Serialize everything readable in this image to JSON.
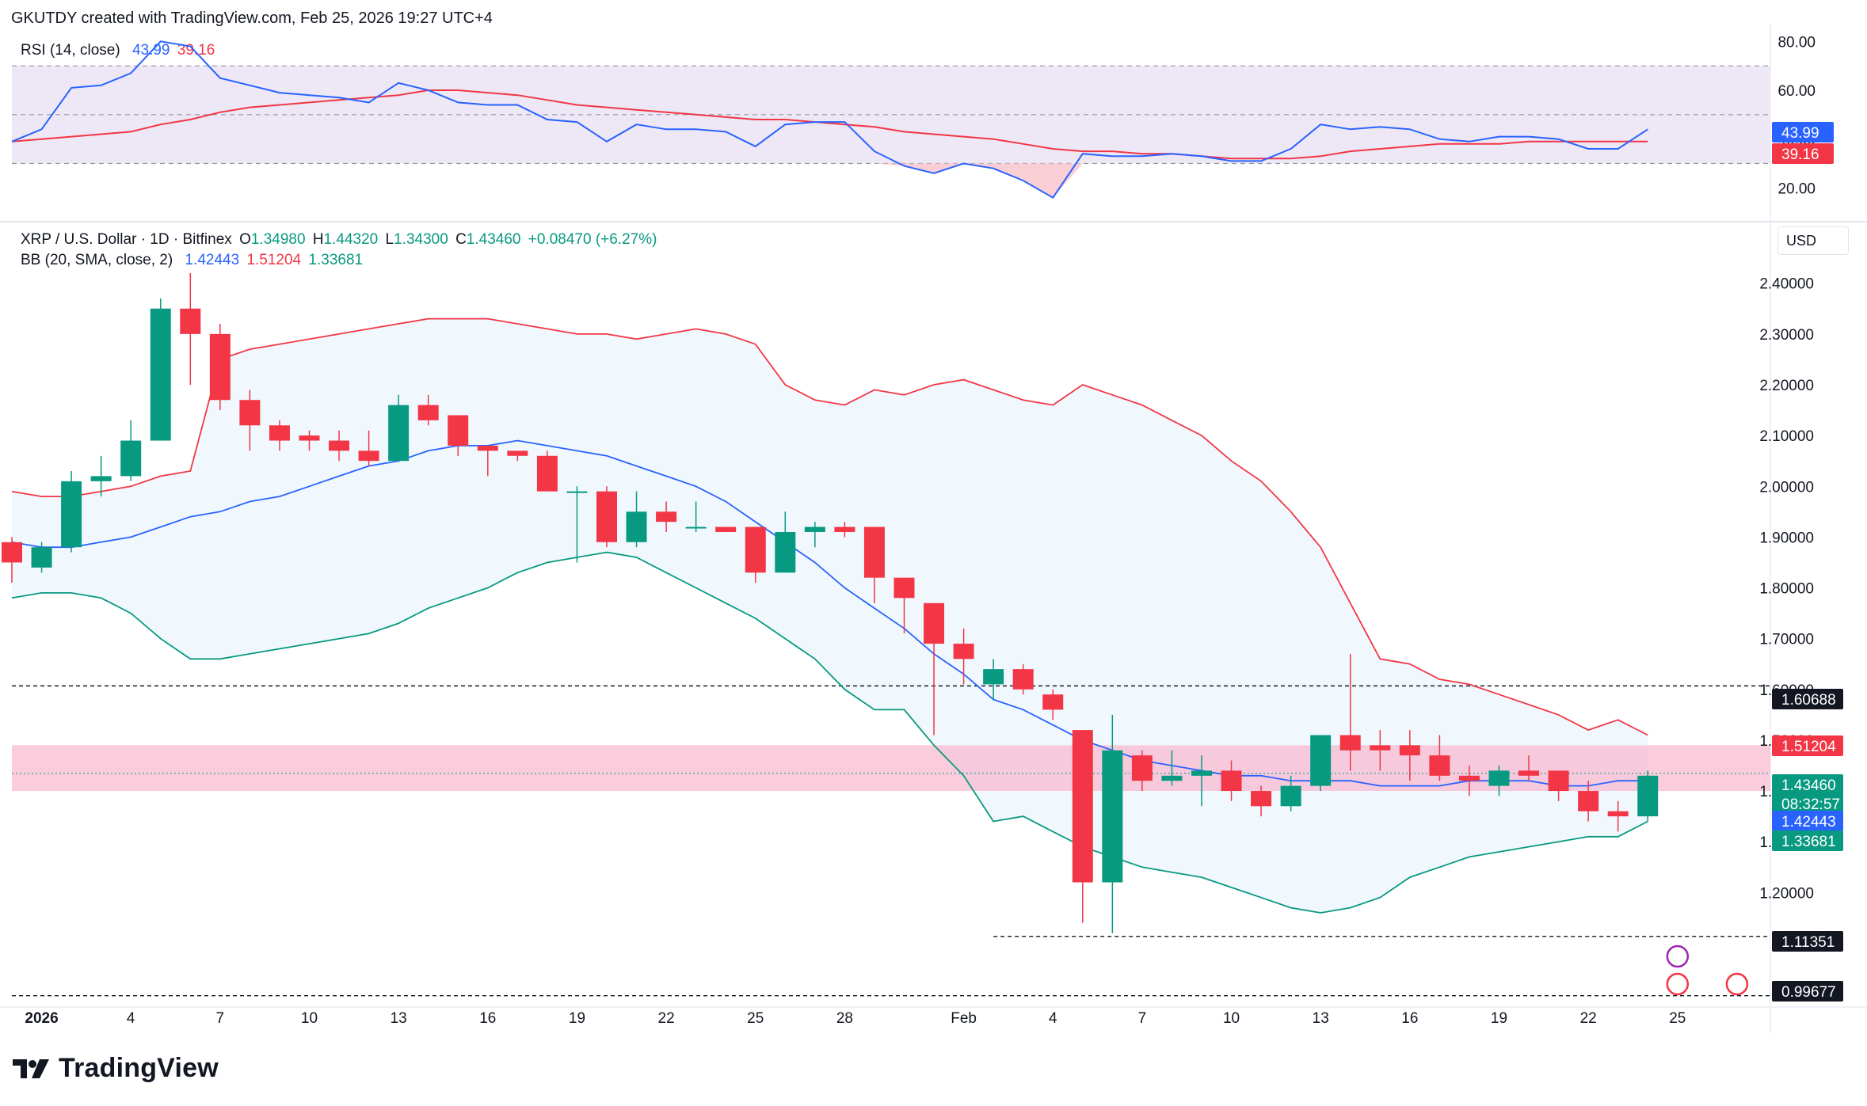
{
  "header": {
    "created_by": "GKUTDY created with TradingView.com, Feb 25, 2026 19:27 UTC+4"
  },
  "rsi_legend": {
    "name": "RSI (14, close)",
    "rsi_value": "43.99",
    "ma_value": "39.16"
  },
  "price_legend": {
    "symbol": "XRP / U.S. Dollar · 1D · Bitfinex",
    "o_label": "O",
    "o_value": "1.34980",
    "h_label": "H",
    "h_value": "1.44320",
    "l_label": "L",
    "l_value": "1.34300",
    "c_label": "C",
    "c_value": "1.43460",
    "change": "+0.08470 (+6.27%)"
  },
  "bb_legend": {
    "name": "BB (20, SMA, close, 2)",
    "basis": "1.42443",
    "upper": "1.51204",
    "lower": "1.33681"
  },
  "currency_label": "USD",
  "brand": "TradingView",
  "colors": {
    "up": "#089981",
    "down": "#f23645",
    "rsi_line": "#2962ff",
    "rsi_ma": "#f23645",
    "bb_basis": "#2962ff",
    "bb_upper": "#f23645",
    "bb_lower": "#089981",
    "bb_fill": "#e3f2fd",
    "rsi_band": "#ede7f6",
    "zone": "#f8bbd0"
  },
  "chart_data": [
    {
      "type": "candlestick",
      "ylim": [
        0.99,
        2.49
      ],
      "y_ticks": [
        "1.20000",
        "1.30000",
        "1.40000",
        "1.50000",
        "1.60000",
        "1.70000",
        "1.80000",
        "1.90000",
        "2.00000",
        "2.10000",
        "2.20000",
        "2.30000",
        "2.40000"
      ],
      "x_ticks": [
        "2026",
        "4",
        "7",
        "10",
        "13",
        "16",
        "19",
        "22",
        "25",
        "28",
        "Feb",
        "4",
        "7",
        "10",
        "13",
        "16",
        "19",
        "22",
        "25"
      ],
      "x_tick_index": [
        1,
        4,
        7,
        10,
        13,
        16,
        19,
        22,
        25,
        28,
        32,
        35,
        38,
        41,
        44,
        47,
        50,
        53,
        56
      ],
      "candles": [
        [
          1.89,
          1.9,
          1.81,
          1.85
        ],
        [
          1.84,
          1.89,
          1.83,
          1.88
        ],
        [
          1.88,
          2.03,
          1.87,
          2.01
        ],
        [
          2.01,
          2.06,
          1.98,
          2.02
        ],
        [
          2.02,
          2.13,
          2.01,
          2.09
        ],
        [
          2.09,
          2.37,
          2.09,
          2.35
        ],
        [
          2.35,
          2.42,
          2.2,
          2.3
        ],
        [
          2.3,
          2.32,
          2.15,
          2.17
        ],
        [
          2.17,
          2.19,
          2.07,
          2.12
        ],
        [
          2.12,
          2.13,
          2.07,
          2.09
        ],
        [
          2.1,
          2.11,
          2.07,
          2.09
        ],
        [
          2.09,
          2.11,
          2.05,
          2.07
        ],
        [
          2.07,
          2.11,
          2.04,
          2.05
        ],
        [
          2.05,
          2.18,
          2.05,
          2.16
        ],
        [
          2.16,
          2.18,
          2.12,
          2.13
        ],
        [
          2.14,
          2.14,
          2.06,
          2.08
        ],
        [
          2.08,
          2.08,
          2.02,
          2.07
        ],
        [
          2.07,
          2.07,
          2.05,
          2.06
        ],
        [
          2.06,
          2.07,
          1.99,
          1.99
        ],
        [
          1.99,
          2.0,
          1.85,
          1.99
        ],
        [
          1.99,
          2.0,
          1.88,
          1.89
        ],
        [
          1.89,
          1.99,
          1.88,
          1.95
        ],
        [
          1.95,
          1.97,
          1.91,
          1.93
        ],
        [
          1.92,
          1.97,
          1.91,
          1.92
        ],
        [
          1.92,
          1.92,
          1.91,
          1.91
        ],
        [
          1.92,
          1.92,
          1.81,
          1.83
        ],
        [
          1.83,
          1.95,
          1.83,
          1.91
        ],
        [
          1.91,
          1.93,
          1.88,
          1.92
        ],
        [
          1.92,
          1.93,
          1.9,
          1.91
        ],
        [
          1.92,
          1.92,
          1.77,
          1.82
        ],
        [
          1.82,
          1.82,
          1.71,
          1.78
        ],
        [
          1.77,
          1.76,
          1.51,
          1.69
        ],
        [
          1.69,
          1.72,
          1.61,
          1.66
        ],
        [
          1.61,
          1.66,
          1.58,
          1.64
        ],
        [
          1.64,
          1.65,
          1.59,
          1.6
        ],
        [
          1.59,
          1.6,
          1.54,
          1.56
        ],
        [
          1.52,
          1.52,
          1.14,
          1.22
        ],
        [
          1.22,
          1.55,
          1.12,
          1.48
        ],
        [
          1.47,
          1.48,
          1.4,
          1.42
        ],
        [
          1.42,
          1.48,
          1.41,
          1.43
        ],
        [
          1.43,
          1.47,
          1.37,
          1.44
        ],
        [
          1.44,
          1.46,
          1.38,
          1.4
        ],
        [
          1.4,
          1.41,
          1.35,
          1.37
        ],
        [
          1.37,
          1.43,
          1.36,
          1.41
        ],
        [
          1.41,
          1.51,
          1.4,
          1.51
        ],
        [
          1.51,
          1.67,
          1.44,
          1.48
        ],
        [
          1.49,
          1.52,
          1.44,
          1.48
        ],
        [
          1.49,
          1.52,
          1.42,
          1.47
        ],
        [
          1.47,
          1.51,
          1.42,
          1.43
        ],
        [
          1.43,
          1.45,
          1.39,
          1.42
        ],
        [
          1.41,
          1.45,
          1.39,
          1.44
        ],
        [
          1.44,
          1.47,
          1.42,
          1.43
        ],
        [
          1.44,
          1.44,
          1.38,
          1.4
        ],
        [
          1.4,
          1.42,
          1.34,
          1.36
        ],
        [
          1.36,
          1.38,
          1.32,
          1.35
        ],
        [
          1.35,
          1.44,
          1.34,
          1.43
        ]
      ],
      "bb_upper": [
        1.99,
        1.98,
        1.98,
        1.99,
        2.0,
        2.02,
        2.03,
        2.25,
        2.27,
        2.28,
        2.29,
        2.3,
        2.31,
        2.32,
        2.33,
        2.33,
        2.33,
        2.32,
        2.31,
        2.3,
        2.3,
        2.29,
        2.3,
        2.31,
        2.3,
        2.28,
        2.2,
        2.17,
        2.16,
        2.19,
        2.18,
        2.2,
        2.21,
        2.19,
        2.17,
        2.16,
        2.2,
        2.18,
        2.16,
        2.13,
        2.1,
        2.05,
        2.01,
        1.95,
        1.88,
        1.77,
        1.66,
        1.65,
        1.62,
        1.61,
        1.59,
        1.57,
        1.55,
        1.52,
        1.54,
        1.51
      ],
      "bb_basis": [
        1.89,
        1.88,
        1.88,
        1.89,
        1.9,
        1.92,
        1.94,
        1.95,
        1.97,
        1.98,
        2.0,
        2.02,
        2.04,
        2.05,
        2.07,
        2.08,
        2.08,
        2.09,
        2.08,
        2.07,
        2.06,
        2.04,
        2.02,
        2.0,
        1.97,
        1.93,
        1.89,
        1.85,
        1.8,
        1.76,
        1.72,
        1.67,
        1.63,
        1.58,
        1.56,
        1.53,
        1.5,
        1.48,
        1.46,
        1.45,
        1.44,
        1.43,
        1.43,
        1.42,
        1.42,
        1.42,
        1.41,
        1.41,
        1.41,
        1.42,
        1.42,
        1.42,
        1.41,
        1.41,
        1.42,
        1.42
      ],
      "bb_lower": [
        1.78,
        1.79,
        1.79,
        1.78,
        1.75,
        1.7,
        1.66,
        1.66,
        1.67,
        1.68,
        1.69,
        1.7,
        1.71,
        1.73,
        1.76,
        1.78,
        1.8,
        1.83,
        1.85,
        1.86,
        1.87,
        1.86,
        1.83,
        1.8,
        1.77,
        1.74,
        1.7,
        1.66,
        1.6,
        1.56,
        1.56,
        1.49,
        1.43,
        1.34,
        1.35,
        1.32,
        1.29,
        1.27,
        1.25,
        1.24,
        1.23,
        1.21,
        1.19,
        1.17,
        1.16,
        1.17,
        1.19,
        1.23,
        1.25,
        1.27,
        1.28,
        1.29,
        1.3,
        1.31,
        1.31,
        1.34
      ],
      "h_lines": [
        1.60688,
        1.11351,
        0.99677
      ],
      "zone": [
        1.4,
        1.49
      ],
      "right_labels": [
        {
          "value": "1.60688",
          "style": "dark"
        },
        {
          "value": "1.51204",
          "style": "red"
        },
        {
          "value": "1.43460",
          "style": "green"
        },
        {
          "value": "08:32:57",
          "style": "green"
        },
        {
          "value": "1.42443",
          "style": "blue"
        },
        {
          "value": "1.33681",
          "style": "green"
        },
        {
          "value": "1.11351",
          "style": "dark"
        },
        {
          "value": "0.99677",
          "style": "dark"
        }
      ]
    },
    {
      "type": "line",
      "name": "RSI (14, close)",
      "ylim": [
        12,
        84
      ],
      "y_ticks": [
        "20.00",
        "40.00",
        "60.00",
        "80.00"
      ],
      "band": [
        30,
        70
      ],
      "mid": 50,
      "rsi": [
        39,
        44,
        61,
        62,
        67,
        80,
        78,
        65,
        62,
        59,
        58,
        57,
        55,
        63,
        60,
        55,
        54,
        54,
        48,
        47,
        39,
        46,
        44,
        44,
        43,
        37,
        46,
        47,
        47,
        35,
        29,
        26,
        30,
        28,
        23,
        16,
        34,
        33,
        33,
        34,
        33,
        31,
        31,
        36,
        46,
        44,
        45,
        44,
        40,
        39,
        41,
        41,
        40,
        36,
        36,
        44
      ],
      "rsi_ma": [
        39,
        40,
        41,
        42,
        43,
        46,
        48,
        51,
        53,
        54,
        55,
        56,
        57,
        58,
        60,
        60,
        59,
        58,
        56,
        54,
        53,
        52,
        51,
        50,
        49,
        48,
        48,
        47,
        46,
        45,
        43,
        42,
        41,
        40,
        38,
        36,
        35,
        35,
        34,
        34,
        33,
        32,
        32,
        32,
        33,
        35,
        36,
        37,
        38,
        38,
        38,
        39,
        39,
        39,
        39,
        39
      ]
    }
  ]
}
